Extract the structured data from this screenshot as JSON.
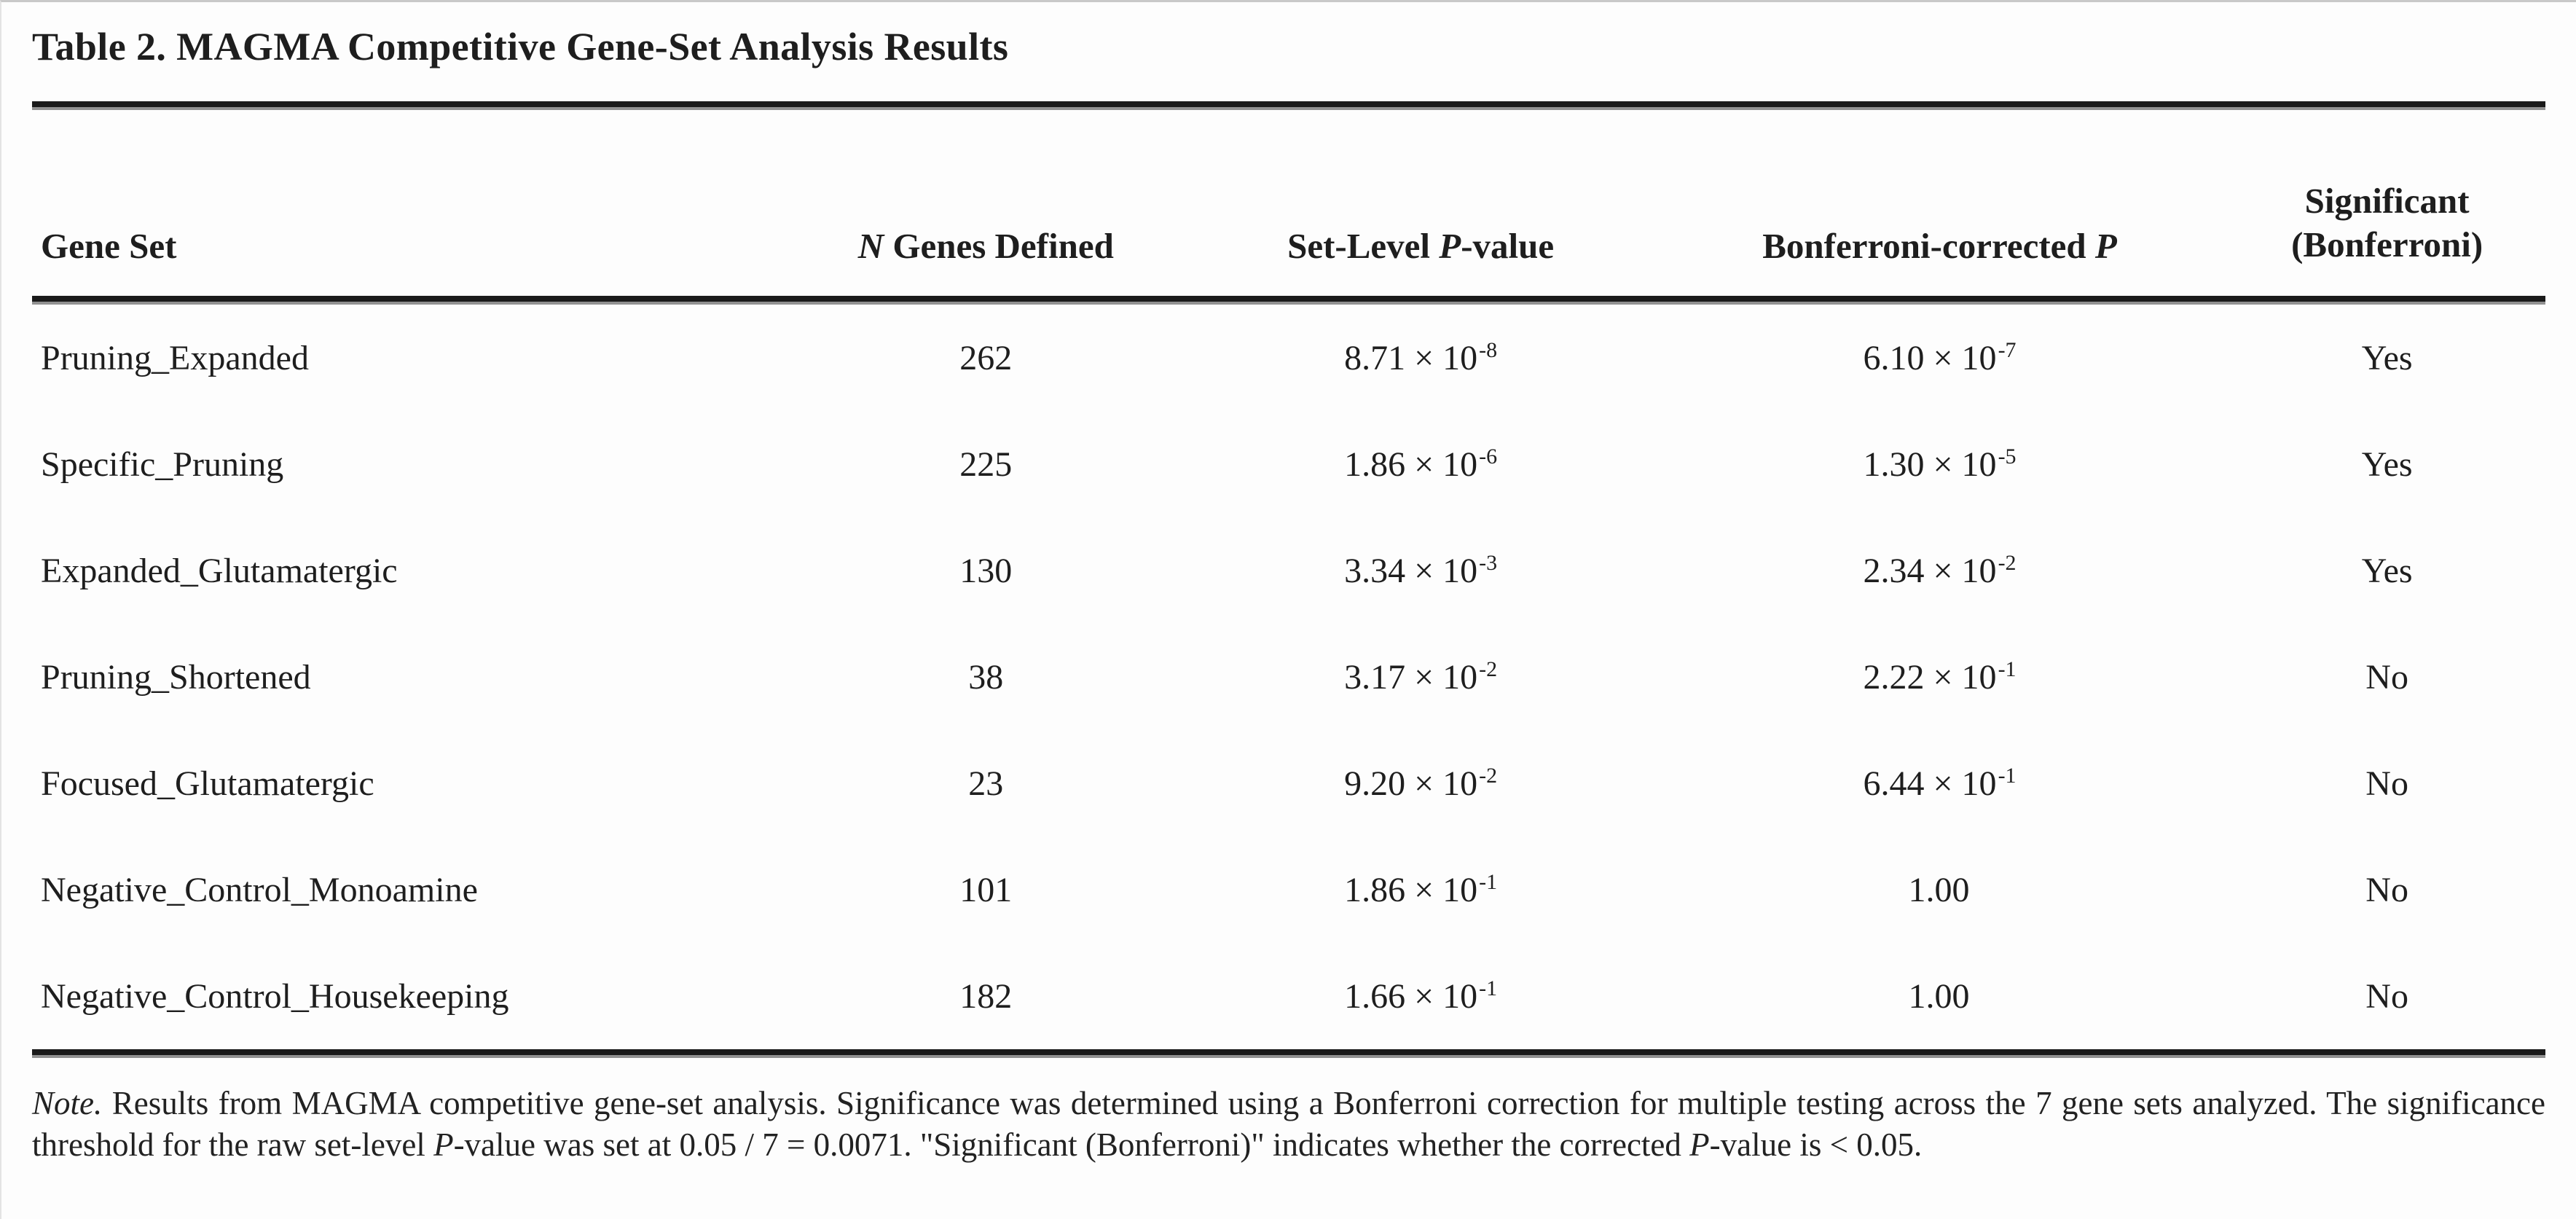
{
  "title": "Table 2. MAGMA Competitive Gene-Set Analysis Results",
  "columns": {
    "gene_set": "Gene Set",
    "n_genes": {
      "italic": "N",
      "rest": " Genes Defined"
    },
    "set_p": {
      "pre": "Set-Level ",
      "italic": "P",
      "post": "-value"
    },
    "bonf_p": {
      "pre": "Bonferroni-corrected ",
      "italic": "P",
      "post": ""
    },
    "significant": {
      "line1": "Significant",
      "line2": "(Bonferroni)"
    }
  },
  "rows": [
    {
      "gene_set": "Pruning_Expanded",
      "n_genes": "262",
      "set_p_base": "8.71 × 10",
      "set_p_exp": "-8",
      "bonf_p_base": "6.10 × 10",
      "bonf_p_exp": "-7",
      "significant": "Yes"
    },
    {
      "gene_set": "Specific_Pruning",
      "n_genes": "225",
      "set_p_base": "1.86 × 10",
      "set_p_exp": "-6",
      "bonf_p_base": "1.30 × 10",
      "bonf_p_exp": "-5",
      "significant": "Yes"
    },
    {
      "gene_set": "Expanded_Glutamatergic",
      "n_genes": "130",
      "set_p_base": "3.34 × 10",
      "set_p_exp": "-3",
      "bonf_p_base": "2.34 × 10",
      "bonf_p_exp": "-2",
      "significant": "Yes"
    },
    {
      "gene_set": "Pruning_Shortened",
      "n_genes": "38",
      "set_p_base": "3.17 × 10",
      "set_p_exp": "-2",
      "bonf_p_base": "2.22 × 10",
      "bonf_p_exp": "-1",
      "significant": "No"
    },
    {
      "gene_set": "Focused_Glutamatergic",
      "n_genes": "23",
      "set_p_base": "9.20 × 10",
      "set_p_exp": "-2",
      "bonf_p_base": "6.44 × 10",
      "bonf_p_exp": "-1",
      "significant": "No"
    },
    {
      "gene_set": "Negative_Control_Monoamine",
      "n_genes": "101",
      "set_p_base": "1.86 × 10",
      "set_p_exp": "-1",
      "bonf_p_base": "1.00",
      "bonf_p_exp": "",
      "significant": "No"
    },
    {
      "gene_set": "Negative_Control_Housekeeping",
      "n_genes": "182",
      "set_p_base": "1.66 × 10",
      "set_p_exp": "-1",
      "bonf_p_base": "1.00",
      "bonf_p_exp": "",
      "significant": "No"
    }
  ],
  "note": {
    "label": "Note.",
    "s1": " Results from MAGMA competitive gene-set analysis. Significance was determined using a Bonferroni correction for multiple testing across the 7 gene sets analyzed. The significance threshold for the raw set-level ",
    "p1": "P",
    "s2": "-value was set at 0.05 / 7 = 0.0071. \"Significant (Bonferroni)\" indicates whether the corrected ",
    "p2": "P",
    "s3": "-value is < 0.05."
  }
}
